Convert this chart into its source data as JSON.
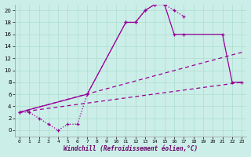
{
  "xlabel": "Windchill (Refroidissement éolien,°C)",
  "bg_color": "#cceee8",
  "line_color": "#990099",
  "xlim": [
    -0.5,
    23.5
  ],
  "ylim": [
    -1,
    21
  ],
  "xticks": [
    0,
    1,
    2,
    3,
    4,
    5,
    6,
    7,
    8,
    9,
    10,
    11,
    12,
    13,
    14,
    15,
    16,
    17,
    18,
    19,
    20,
    21,
    22,
    23
  ],
  "yticks": [
    0,
    2,
    4,
    6,
    8,
    10,
    12,
    14,
    16,
    18,
    20
  ],
  "curve1_x": [
    0,
    1,
    2,
    3,
    4,
    5,
    6,
    7,
    11,
    12,
    13,
    14,
    15,
    16,
    17
  ],
  "curve1_y": [
    3,
    3,
    2,
    1,
    0,
    1,
    1,
    6,
    18,
    18,
    20,
    21,
    21,
    20,
    19
  ],
  "curve2_x": [
    0,
    7,
    11,
    12,
    13,
    14,
    15,
    16,
    17,
    21,
    22,
    23
  ],
  "curve2_y": [
    3,
    6,
    18,
    18,
    20,
    21,
    21,
    16,
    16,
    16,
    8,
    8
  ],
  "curve3_x": [
    0,
    23
  ],
  "curve3_y": [
    3,
    13
  ],
  "curve4_x": [
    0,
    23
  ],
  "curve4_y": [
    3,
    8
  ],
  "grid_color": "#aaddcc",
  "xlabel_color": "#660066"
}
